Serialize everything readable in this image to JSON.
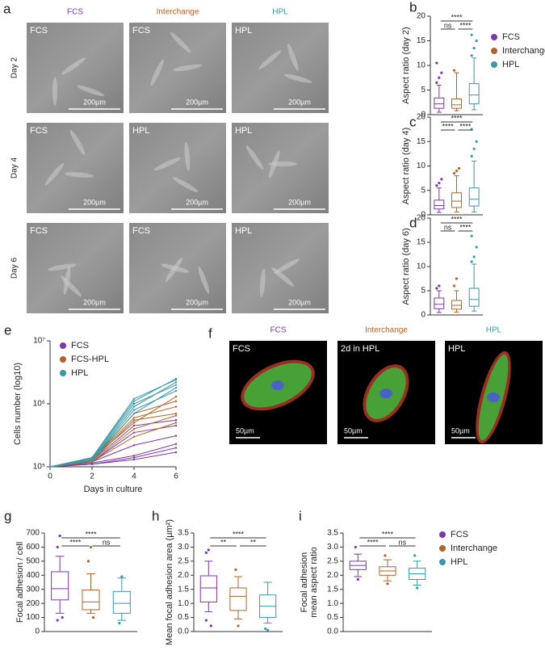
{
  "micrographs": {
    "panel": "a",
    "columns": [
      "FCS",
      "Interchange",
      "HPL"
    ],
    "rows": [
      {
        "day": "Day 2",
        "cells": [
          "FCS",
          "FCS",
          "HPL"
        ]
      },
      {
        "day": "Day 4",
        "cells": [
          "FCS",
          "HPL",
          "HPL"
        ]
      },
      {
        "day": "Day 6",
        "cells": [
          "FCS",
          "FCS",
          "HPL"
        ]
      }
    ],
    "scale": "200µm"
  },
  "fluorescence": {
    "panel": "f",
    "columns": [
      "FCS",
      "Interchange",
      "HPL"
    ],
    "cells": [
      "FCS",
      "2d in HPL",
      "HPL"
    ],
    "scale": "50µm"
  },
  "chart_data": [
    {
      "type": "box",
      "panel": "b",
      "ylabel": "Aspect ratio (day 2)",
      "ylim": [
        0,
        20
      ],
      "yticks": [
        0,
        5,
        10,
        15,
        20
      ],
      "legend": true,
      "series": [
        {
          "name": "FCS",
          "color": "#7b3aa6",
          "box": {
            "low": 0.5,
            "q1": 1.3,
            "median": 2.2,
            "q3": 3.4,
            "high": 6,
            "outliers": [
              6.5,
              7.5,
              8.5,
              10.5
            ]
          }
        },
        {
          "name": "Interchange",
          "color": "#b4622a",
          "box": {
            "low": 0.8,
            "q1": 1.3,
            "median": 2,
            "q3": 3.2,
            "high": 8.5,
            "outliers": [
              9
            ]
          }
        },
        {
          "name": "HPL",
          "color": "#3a98a8",
          "box": {
            "low": 1,
            "q1": 2.2,
            "median": 4,
            "q3": 6.3,
            "high": 11.5,
            "outliers": [
              12,
              13.5,
              15,
              16.2
            ]
          }
        }
      ],
      "significance": [
        {
          "from": 0,
          "to": 2,
          "label": "****"
        },
        {
          "from": 0,
          "to": 1,
          "label": "ns"
        },
        {
          "from": 1,
          "to": 2,
          "label": "****"
        }
      ]
    },
    {
      "type": "box",
      "panel": "c",
      "ylabel": "Aspect ratio (day 4)",
      "ylim": [
        0,
        20
      ],
      "yticks": [
        0,
        5,
        10,
        15,
        20
      ],
      "legend": false,
      "series": [
        {
          "color": "#7b3aa6",
          "box": {
            "low": 0.5,
            "q1": 1.2,
            "median": 1.9,
            "q3": 3,
            "high": 5.5,
            "outliers": [
              6,
              6.5,
              7.3
            ]
          }
        },
        {
          "color": "#b4622a",
          "box": {
            "low": 0.6,
            "q1": 1.5,
            "median": 2.8,
            "q3": 4.5,
            "high": 8,
            "outliers": [
              8.5,
              9,
              9.5
            ]
          }
        },
        {
          "color": "#3a98a8",
          "box": {
            "low": 0.6,
            "q1": 1.8,
            "median": 3.2,
            "q3": 5.5,
            "high": 11,
            "outliers": [
              12,
              13.5,
              15,
              17.5
            ]
          }
        }
      ],
      "significance": [
        {
          "from": 0,
          "to": 2,
          "label": "****"
        },
        {
          "from": 0,
          "to": 1,
          "label": "****"
        },
        {
          "from": 1,
          "to": 2,
          "label": "****"
        }
      ]
    },
    {
      "type": "box",
      "panel": "d",
      "ylabel": "Aspect ratio (day 6)",
      "ylim": [
        0,
        20
      ],
      "yticks": [
        0,
        5,
        10,
        15,
        20
      ],
      "legend": false,
      "series": [
        {
          "color": "#7b3aa6",
          "box": {
            "low": 0.5,
            "q1": 1.3,
            "median": 2.2,
            "q3": 3.5,
            "high": 5,
            "outliers": [
              5.5,
              6
            ]
          }
        },
        {
          "color": "#b4622a",
          "box": {
            "low": 0.6,
            "q1": 1.2,
            "median": 2,
            "q3": 3,
            "high": 5,
            "outliers": [
              6,
              7.5
            ]
          }
        },
        {
          "color": "#3a98a8",
          "box": {
            "low": 0.8,
            "q1": 1.8,
            "median": 3.2,
            "q3": 5.5,
            "high": 10.5,
            "outliers": [
              11,
              12,
              14,
              16.3
            ]
          }
        }
      ],
      "significance": [
        {
          "from": 0,
          "to": 2,
          "label": "****"
        },
        {
          "from": 0,
          "to": 1,
          "label": "ns"
        },
        {
          "from": 1,
          "to": 2,
          "label": "****"
        }
      ]
    },
    {
      "type": "line",
      "panel": "e",
      "xlabel": "Days in culture",
      "ylabel": "Cells number (log10)",
      "ylog": true,
      "x": [
        0,
        2,
        4,
        6
      ],
      "xlim": [
        0,
        6
      ],
      "xticks": [
        0,
        2,
        4,
        6
      ],
      "ylim": [
        100000,
        10000000
      ],
      "yticks": [
        {
          "value": 100000,
          "label": "10⁵"
        },
        {
          "value": 1000000,
          "label": "10⁶"
        },
        {
          "value": 10000000,
          "label": "10⁷"
        }
      ],
      "legend": true,
      "series": [
        {
          "name": "FCS",
          "color": "#7b3aa6",
          "lines": [
            [
              100000,
              110000,
              130000,
              170000
            ],
            [
              100000,
              110000,
              140000,
              200000
            ],
            [
              100000,
              115000,
              150000,
              230000
            ],
            [
              100000,
              120000,
              220000,
              310000
            ],
            [
              100000,
              120000,
              350000,
              450000
            ],
            [
              100000,
              125000,
              450000,
              550000
            ]
          ]
        },
        {
          "name": "FCS-HPL",
          "color": "#b4622a",
          "lines": [
            [
              100000,
              120000,
              400000,
              650000
            ],
            [
              100000,
              125000,
              550000,
              700000
            ],
            [
              100000,
              130000,
              600000,
              900000
            ],
            [
              100000,
              130000,
              700000,
              1100000
            ],
            [
              100000,
              135000,
              500000,
              1300000
            ],
            [
              100000,
              120000,
              300000,
              500000
            ]
          ]
        },
        {
          "name": "HPL",
          "color": "#3a98a8",
          "lines": [
            [
              100000,
              130000,
              800000,
              1600000
            ],
            [
              100000,
              135000,
              1000000,
              2000000
            ],
            [
              100000,
              140000,
              1100000,
              2500000
            ],
            [
              100000,
              130000,
              900000,
              2200000
            ],
            [
              100000,
              125000,
              700000,
              1800000
            ],
            [
              100000,
              140000,
              1200000,
              2400000
            ]
          ]
        }
      ]
    },
    {
      "type": "box",
      "panel": "g",
      "ylabel": "Focal adhesion / cell",
      "ylim": [
        0,
        700
      ],
      "yticks": [
        0,
        100,
        200,
        300,
        400,
        500,
        600,
        700
      ],
      "legend": false,
      "series": [
        {
          "color": "#7b3aa6",
          "box": {
            "low": 130,
            "q1": 225,
            "median": 305,
            "q3": 425,
            "high": 535,
            "outliers": [
              600,
              680,
              100,
              80
            ]
          }
        },
        {
          "color": "#b4622a",
          "box": {
            "low": 130,
            "q1": 155,
            "median": 210,
            "q3": 295,
            "high": 410,
            "outliers": [
              500,
              600,
              100
            ]
          }
        },
        {
          "color": "#3a98a8",
          "box": {
            "low": 80,
            "q1": 130,
            "median": 200,
            "q3": 285,
            "high": 380,
            "outliers": [
              60,
              390
            ]
          }
        }
      ],
      "significance": [
        {
          "from": 0,
          "to": 2,
          "label": "****"
        },
        {
          "from": 0,
          "to": 1,
          "label": "****"
        },
        {
          "from": 1,
          "to": 2,
          "label": "ns"
        }
      ]
    },
    {
      "type": "box",
      "panel": "h",
      "ylabel": "Mean focal adhesion area (µm²)",
      "ylim": [
        0,
        3.5
      ],
      "yticks": [
        {
          "value": 0,
          "label": "0.0"
        },
        0.5,
        {
          "value": 1,
          "label": "1.0"
        },
        1.5,
        {
          "value": 2,
          "label": "2.0"
        },
        2.5,
        {
          "value": 3,
          "label": "3.0"
        },
        3.5
      ],
      "legend": false,
      "series": [
        {
          "color": "#7b3aa6",
          "box": {
            "low": 0.7,
            "q1": 1.05,
            "median": 1.55,
            "q3": 1.98,
            "high": 2.5,
            "outliers": [
              2.8,
              2.9,
              0.2,
              0.4
            ]
          }
        },
        {
          "color": "#b4622a",
          "box": {
            "low": 0.45,
            "q1": 0.75,
            "median": 1.25,
            "q3": 1.55,
            "high": 1.95,
            "outliers": [
              2.2,
              0.2
            ]
          }
        },
        {
          "color": "#3a98a8",
          "box": {
            "low": 0.3,
            "q1": 0.5,
            "median": 0.9,
            "q3": 1.3,
            "high": 1.75,
            "outliers": [
              0.1,
              0.05
            ]
          }
        }
      ],
      "significance": [
        {
          "from": 0,
          "to": 2,
          "label": "****"
        },
        {
          "from": 0,
          "to": 1,
          "label": "**"
        },
        {
          "from": 1,
          "to": 2,
          "label": "**"
        }
      ]
    },
    {
      "type": "box",
      "panel": "i",
      "ylabel": [
        "Focal adhesion",
        "mean aspect ratio"
      ],
      "ylim": [
        0,
        3.5
      ],
      "yticks": [
        {
          "value": 0,
          "label": "0.0"
        },
        0.5,
        {
          "value": 1,
          "label": "1.0"
        },
        1.5,
        {
          "value": 2,
          "label": "2.0"
        },
        2.5,
        {
          "value": 3,
          "label": "3.0"
        },
        3.5
      ],
      "legend": true,
      "series": [
        {
          "name": "FCS",
          "color": "#7b3aa6",
          "box": {
            "low": 1.95,
            "q1": 2.2,
            "median": 2.35,
            "q3": 2.5,
            "high": 2.75,
            "outliers": [
              3.0,
              1.85
            ]
          }
        },
        {
          "name": "Interchange",
          "color": "#b4622a",
          "box": {
            "low": 1.8,
            "q1": 2.0,
            "median": 2.15,
            "q3": 2.3,
            "high": 2.55,
            "outliers": [
              2.7,
              1.7
            ]
          }
        },
        {
          "name": "HPL",
          "color": "#3a98a8",
          "box": {
            "low": 1.65,
            "q1": 1.85,
            "median": 2.05,
            "q3": 2.25,
            "high": 2.5,
            "outliers": [
              2.7,
              1.55
            ]
          }
        }
      ],
      "significance": [
        {
          "from": 0,
          "to": 2,
          "label": "****"
        },
        {
          "from": 0,
          "to": 1,
          "label": "****"
        },
        {
          "from": 1,
          "to": 2,
          "label": "ns"
        }
      ]
    }
  ]
}
